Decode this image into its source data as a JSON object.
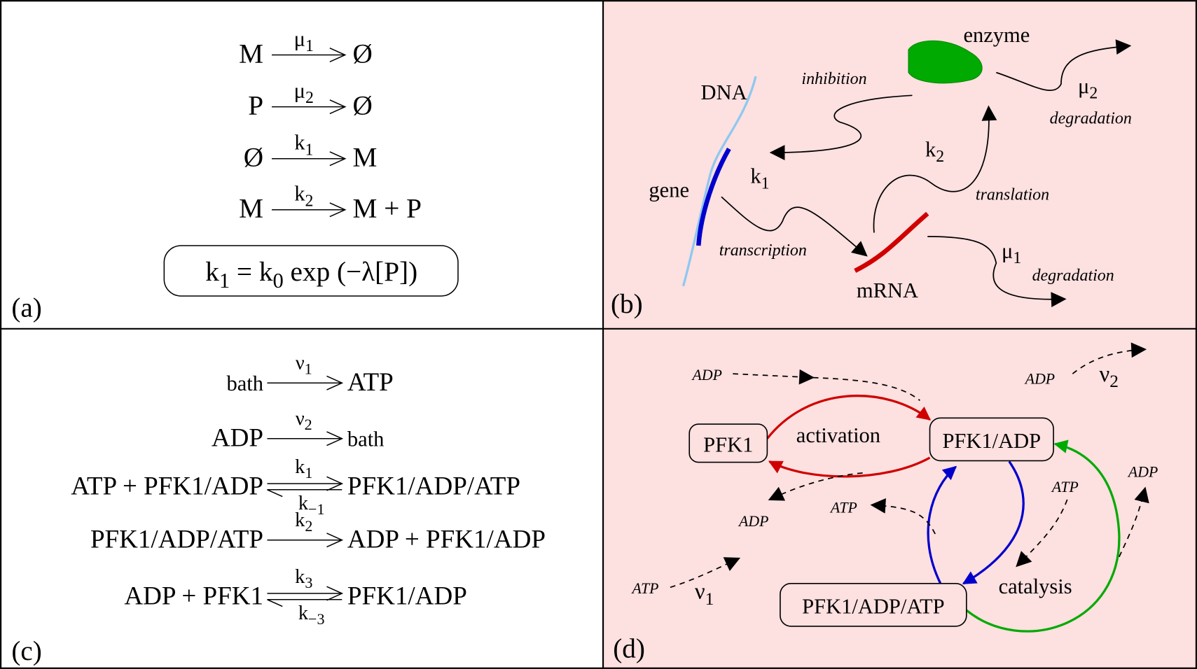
{
  "panel_a": {
    "label": "(a)",
    "reactions": [
      {
        "left": "M",
        "rate": [
          {
            "t": "μ"
          },
          {
            "s": "1"
          }
        ],
        "right": "Ø"
      },
      {
        "left": "P",
        "rate": [
          {
            "t": "μ"
          },
          {
            "s": "2"
          }
        ],
        "right": "Ø"
      },
      {
        "left": "Ø",
        "rate": [
          {
            "t": "k"
          },
          {
            "s": "1"
          }
        ],
        "right": "M"
      },
      {
        "left": "M",
        "rate": [
          {
            "t": "k"
          },
          {
            "s": "2"
          }
        ],
        "right": "M + P"
      }
    ],
    "equation": [
      {
        "t": "k"
      },
      {
        "s": "1"
      },
      {
        "t": " = k"
      },
      {
        "s": "0"
      },
      {
        "t": " exp (−λ[P])"
      }
    ]
  },
  "panel_b": {
    "label": "(b)",
    "labels": [
      [
        {
          "t": "DNA"
        }
      ],
      [
        {
          "t": "gene"
        }
      ],
      [
        {
          "t": "inhibition"
        }
      ],
      [
        {
          "t": "enzyme"
        }
      ],
      [
        {
          "t": "μ"
        },
        {
          "s": "2"
        }
      ],
      [
        {
          "t": "degradation"
        }
      ],
      [
        {
          "t": "k"
        },
        {
          "s": "2"
        }
      ],
      [
        {
          "t": "k"
        },
        {
          "s": "1"
        }
      ],
      [
        {
          "t": "translation"
        }
      ],
      [
        {
          "t": "transcription"
        }
      ],
      [
        {
          "t": "mRNA"
        }
      ],
      [
        {
          "t": "μ"
        },
        {
          "s": "1"
        }
      ],
      [
        {
          "t": "degradation"
        }
      ]
    ]
  },
  "panel_c": {
    "label": "(c)",
    "reactions": [
      {
        "left": "bath",
        "rate": [
          {
            "t": "ν"
          },
          {
            "s": "1"
          }
        ],
        "right": "ATP"
      },
      {
        "left": "ADP",
        "rate": [
          {
            "t": "ν"
          },
          {
            "s": "2"
          }
        ],
        "right": "bath"
      },
      {
        "left": "ATP + PFK1/ADP",
        "rate": [
          {
            "t": "k"
          },
          {
            "s": "1"
          }
        ],
        "rate_back": [
          {
            "t": "k"
          },
          {
            "s": "−1"
          }
        ],
        "right": "PFK1/ADP/ATP"
      },
      {
        "left": "PFK1/ADP/ATP",
        "rate": [
          {
            "t": "k"
          },
          {
            "s": "2"
          }
        ],
        "right": "ADP + PFK1/ADP"
      },
      {
        "left": "ADP + PFK1",
        "rate": [
          {
            "t": "k"
          },
          {
            "s": "3"
          }
        ],
        "rate_back": [
          {
            "t": "k"
          },
          {
            "s": "−3"
          }
        ],
        "right": "PFK1/ADP"
      }
    ]
  },
  "panel_d": {
    "label": "(d)",
    "nodes": [
      "PFK1",
      "PFK1/ADP",
      "PFK1/ADP/ATP"
    ],
    "labels": [
      [
        {
          "t": "ADP"
        }
      ],
      [
        {
          "t": "ADP"
        }
      ],
      [
        {
          "t": "ν"
        },
        {
          "s": "2"
        }
      ],
      [
        {
          "t": "activation"
        }
      ],
      [
        {
          "t": "ATP"
        }
      ],
      [
        {
          "t": "ADP"
        }
      ],
      [
        {
          "t": "ATP"
        }
      ],
      [
        {
          "t": "ADP"
        }
      ],
      [
        {
          "t": "ATP"
        }
      ],
      [
        {
          "t": "ν"
        },
        {
          "s": "1"
        }
      ],
      [
        {
          "t": "catalysis"
        }
      ]
    ]
  }
}
